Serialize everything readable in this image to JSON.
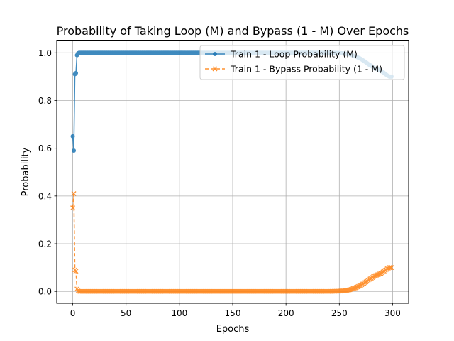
{
  "chart_data": {
    "type": "line",
    "title": "Probability of Taking Loop (M) and Bypass (1 - M) Over Epochs",
    "xlabel": "Epochs",
    "ylabel": "Probability",
    "xlim": [
      -15,
      315
    ],
    "ylim": [
      -0.05,
      1.05
    ],
    "xticks": [
      0,
      50,
      100,
      150,
      200,
      250,
      300
    ],
    "yticks": [
      0.0,
      0.2,
      0.4,
      0.6,
      0.8,
      1.0
    ],
    "ytick_labels": [
      "0.0",
      "0.2",
      "0.4",
      "0.6",
      "0.8",
      "1.0"
    ],
    "grid": true,
    "legend_position": "upper-right",
    "series": [
      {
        "name": "Train 1 - Loop Probability (M)",
        "color": "#1f77b4",
        "marker": "circle",
        "linestyle": "solid",
        "points": [
          [
            0,
            0.65
          ],
          [
            1,
            0.59
          ],
          [
            2,
            0.91
          ],
          [
            3,
            0.915
          ],
          [
            4,
            0.99
          ],
          [
            5,
            0.998
          ],
          [
            6,
            1.0
          ],
          [
            20,
            1.0
          ],
          [
            40,
            1.0
          ],
          [
            60,
            1.0
          ],
          [
            80,
            1.0
          ],
          [
            100,
            1.0
          ],
          [
            120,
            1.0
          ],
          [
            140,
            1.0
          ],
          [
            160,
            1.0
          ],
          [
            180,
            1.0
          ],
          [
            200,
            1.0
          ],
          [
            220,
            1.0
          ],
          [
            240,
            1.0
          ],
          [
            250,
            0.999
          ],
          [
            255,
            0.997
          ],
          [
            260,
            0.993
          ],
          [
            265,
            0.985
          ],
          [
            270,
            0.975
          ],
          [
            275,
            0.96
          ],
          [
            278,
            0.95
          ],
          [
            280,
            0.945
          ],
          [
            283,
            0.935
          ],
          [
            286,
            0.93
          ],
          [
            289,
            0.925
          ],
          [
            292,
            0.915
          ],
          [
            295,
            0.905
          ],
          [
            297,
            0.9
          ],
          [
            299,
            0.9
          ]
        ]
      },
      {
        "name": "Train 1 - Bypass Probability (1 - M)",
        "color": "#ff7f0e",
        "marker": "x",
        "linestyle": "dashed",
        "points": [
          [
            0,
            0.35
          ],
          [
            1,
            0.41
          ],
          [
            2,
            0.09
          ],
          [
            3,
            0.085
          ],
          [
            4,
            0.01
          ],
          [
            5,
            0.002
          ],
          [
            6,
            0.0
          ],
          [
            20,
            0.0
          ],
          [
            40,
            0.0
          ],
          [
            60,
            0.0
          ],
          [
            80,
            0.0
          ],
          [
            100,
            0.0
          ],
          [
            120,
            0.0
          ],
          [
            140,
            0.0
          ],
          [
            160,
            0.0
          ],
          [
            180,
            0.0
          ],
          [
            200,
            0.0
          ],
          [
            220,
            0.0
          ],
          [
            240,
            0.0
          ],
          [
            250,
            0.001
          ],
          [
            255,
            0.003
          ],
          [
            260,
            0.007
          ],
          [
            265,
            0.015
          ],
          [
            270,
            0.025
          ],
          [
            275,
            0.04
          ],
          [
            278,
            0.05
          ],
          [
            280,
            0.055
          ],
          [
            283,
            0.065
          ],
          [
            286,
            0.07
          ],
          [
            289,
            0.075
          ],
          [
            292,
            0.085
          ],
          [
            295,
            0.095
          ],
          [
            297,
            0.1
          ],
          [
            299,
            0.1
          ]
        ]
      }
    ]
  }
}
